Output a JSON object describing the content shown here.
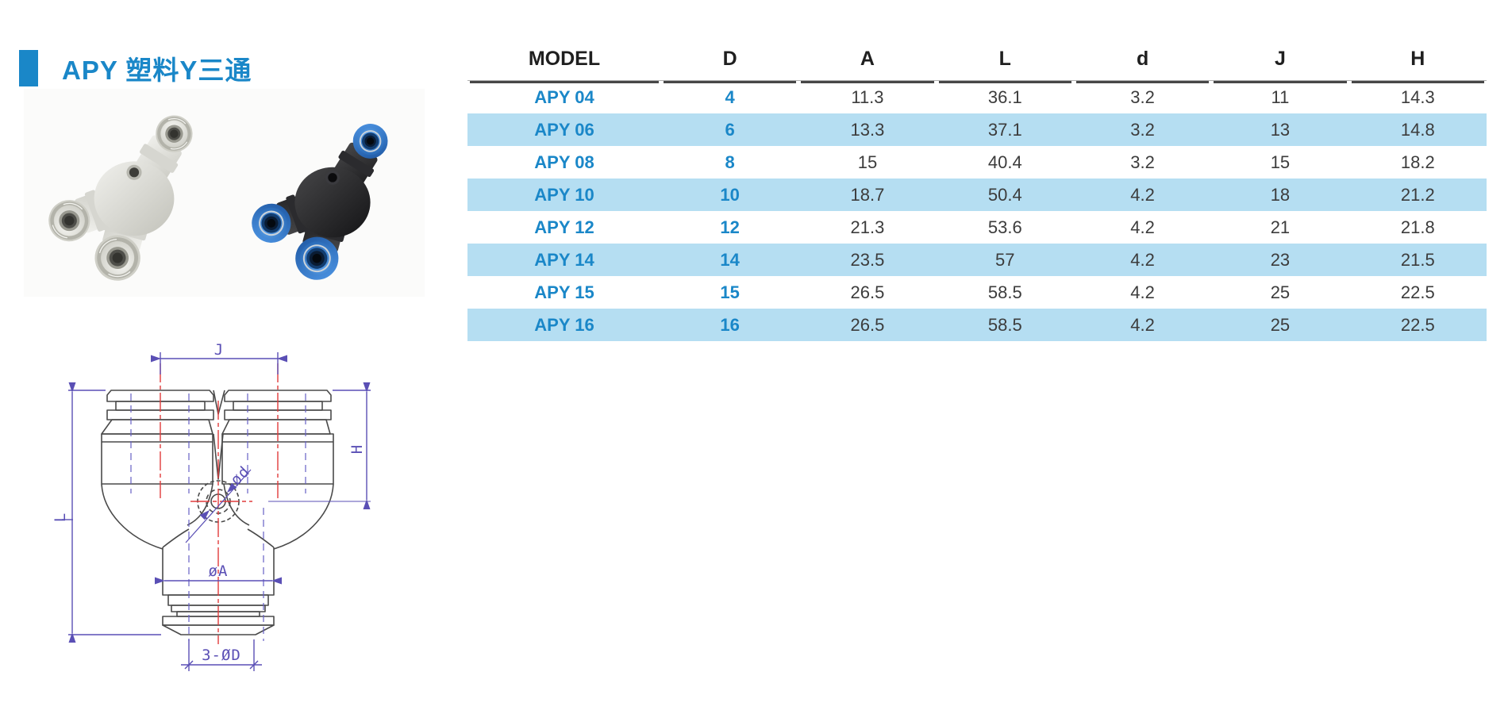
{
  "header": {
    "title": "APY 塑料Y三通"
  },
  "table": {
    "columns": [
      "MODEL",
      "D",
      "A",
      "L",
      "d",
      "J",
      "H"
    ],
    "rows": [
      {
        "model": "APY 04",
        "values": [
          "4",
          "11.3",
          "36.1",
          "3.2",
          "11",
          "14.3"
        ]
      },
      {
        "model": "APY 06",
        "values": [
          "6",
          "13.3",
          "37.1",
          "3.2",
          "13",
          "14.8"
        ]
      },
      {
        "model": "APY 08",
        "values": [
          "8",
          "15",
          "40.4",
          "3.2",
          "15",
          "18.2"
        ]
      },
      {
        "model": "APY 10",
        "values": [
          "10",
          "18.7",
          "50.4",
          "4.2",
          "18",
          "21.2"
        ]
      },
      {
        "model": "APY 12",
        "values": [
          "12",
          "21.3",
          "53.6",
          "4.2",
          "21",
          "21.8"
        ]
      },
      {
        "model": "APY 14",
        "values": [
          "14",
          "23.5",
          "57",
          "4.2",
          "23",
          "21.5"
        ]
      },
      {
        "model": "APY 15",
        "values": [
          "15",
          "26.5",
          "58.5",
          "4.2",
          "25",
          "22.5"
        ]
      },
      {
        "model": "APY 16",
        "values": [
          "16",
          "26.5",
          "58.5",
          "4.2",
          "25",
          "22.5"
        ]
      }
    ]
  },
  "drawing": {
    "labels": {
      "j": "J",
      "h": "H",
      "l": "L",
      "phi_d": "ød",
      "phi_a": "øA",
      "bottom_holes": "3-ØD"
    }
  },
  "photos": {
    "left": "gray-y-fitting-photo",
    "right": "black-blue-y-fitting-photo"
  },
  "colors": {
    "accent_blue": "#1a87c8",
    "row_alt_blue": "#b5def2",
    "dimension_purple": "#5a4fb5",
    "centerline_red": "#e03b3b",
    "outline_gray": "#4a4a4a"
  }
}
